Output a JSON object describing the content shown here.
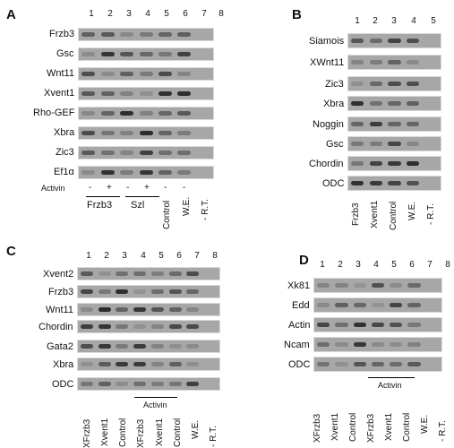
{
  "panel_a": {
    "label": "A",
    "lane_numbers": [
      "1",
      "2",
      "3",
      "4",
      "5",
      "6",
      "7",
      "8"
    ],
    "rows": [
      "Frzb3",
      "Gsc",
      "Wnt11",
      "Xvent1",
      "Rho-GEF",
      "Xbra",
      "Zic3",
      "Ef1α"
    ],
    "activin_label": "Activin",
    "signs": [
      "-",
      "+",
      "-",
      "+",
      "-",
      "-"
    ],
    "groups": [
      "Frzb3",
      "Szl"
    ],
    "vertical_labels": [
      "Control",
      "W.E.",
      "- R.T."
    ]
  },
  "panel_b": {
    "label": "B",
    "lane_numbers": [
      "1",
      "2",
      "3",
      "4",
      "5"
    ],
    "rows": [
      "Siamois",
      "XWnt11",
      "Zic3",
      "Xbra",
      "Noggin",
      "Gsc",
      "Chordin",
      "ODC"
    ],
    "vertical_labels": [
      "Frzb3",
      "Xvent1",
      "Control",
      "W.E.",
      "- R.T."
    ]
  },
  "panel_c": {
    "label": "C",
    "lane_numbers": [
      "1",
      "2",
      "3",
      "4",
      "5",
      "6",
      "7",
      "8"
    ],
    "rows": [
      "Xvent2",
      "Frzb3",
      "Wnt11",
      "Chordin",
      "Gata2",
      "Xbra",
      "ODC"
    ],
    "activin_label": "Activin",
    "vertical_labels": [
      "XFrzb3",
      "Xvent1",
      "Control",
      "XFrzb3",
      "Xvent1",
      "Control",
      "W.E.",
      "- R.T."
    ]
  },
  "panel_d": {
    "label": "D",
    "lane_numbers": [
      "1",
      "2",
      "3",
      "4",
      "5",
      "6",
      "7",
      "8"
    ],
    "rows": [
      "Xk81",
      "Edd",
      "Actin",
      "Ncam",
      "ODC"
    ],
    "activin_label": "Activin",
    "vertical_labels": [
      "XFrzb3",
      "Xvent1",
      "Control",
      "XFrzb3",
      "Xvent1",
      "Control",
      "W.E.",
      "- R.T."
    ]
  }
}
